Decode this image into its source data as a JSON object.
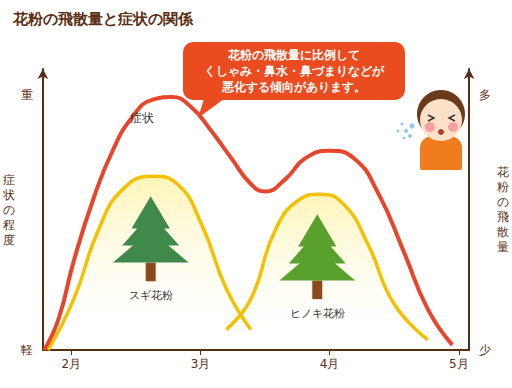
{
  "chart_data": {
    "type": "line",
    "title": "花粉の飛散量と症状の関係",
    "annotation": [
      "花粉の飛散量に比例して",
      "くしゃみ・鼻水・鼻づまりなどが",
      "悪化する傾向があります。"
    ],
    "ylabel": "症状の程度",
    "y2label": "花粉の飛散量",
    "xlim": [
      1.78,
      5.08
    ],
    "xticks": [
      {
        "value": 2,
        "label": "2月"
      },
      {
        "value": 3,
        "label": "3月"
      },
      {
        "value": 4,
        "label": "4月"
      },
      {
        "value": 5,
        "label": "5月"
      }
    ],
    "ylim": [
      0,
      110
    ],
    "yticks": [
      {
        "value": 0,
        "label": "軽"
      },
      {
        "value": 100,
        "label": "重"
      }
    ],
    "y2lim": [
      0,
      110
    ],
    "y2ticks": [
      {
        "value": 0,
        "label": "少"
      },
      {
        "value": 100,
        "label": "多"
      }
    ],
    "grid": false,
    "series": [
      {
        "name": "症状",
        "color": "#e8462a",
        "x": [
          1.79,
          1.9,
          2.02,
          2.17,
          2.32,
          2.47,
          2.63,
          2.78,
          2.93,
          3.08,
          3.24,
          3.39,
          3.5,
          3.66,
          3.81,
          4.0,
          4.19,
          4.38,
          4.57,
          4.76,
          4.95
        ],
        "values": [
          0,
          12,
          35,
          59,
          78,
          91,
          98,
          99,
          95,
          86,
          75,
          65,
          62,
          67,
          75,
          78,
          75,
          61,
          39,
          16,
          2
        ]
      },
      {
        "name": "スギ花粉",
        "color": "#f5c000",
        "axis": "y2",
        "x": [
          1.82,
          2.02,
          2.21,
          2.4,
          2.63,
          2.82,
          3.01,
          3.2,
          3.39
        ],
        "values": [
          0,
          20,
          47,
          63,
          68,
          65,
          49,
          24,
          8
        ]
      },
      {
        "name": "ヒノキ花粉",
        "color": "#f5c000",
        "axis": "y2",
        "x": [
          3.2,
          3.39,
          3.58,
          3.77,
          3.92,
          4.11,
          4.3,
          4.5,
          4.76
        ],
        "values": [
          8,
          20,
          47,
          59,
          61,
          57,
          41,
          18,
          4
        ]
      }
    ]
  }
}
